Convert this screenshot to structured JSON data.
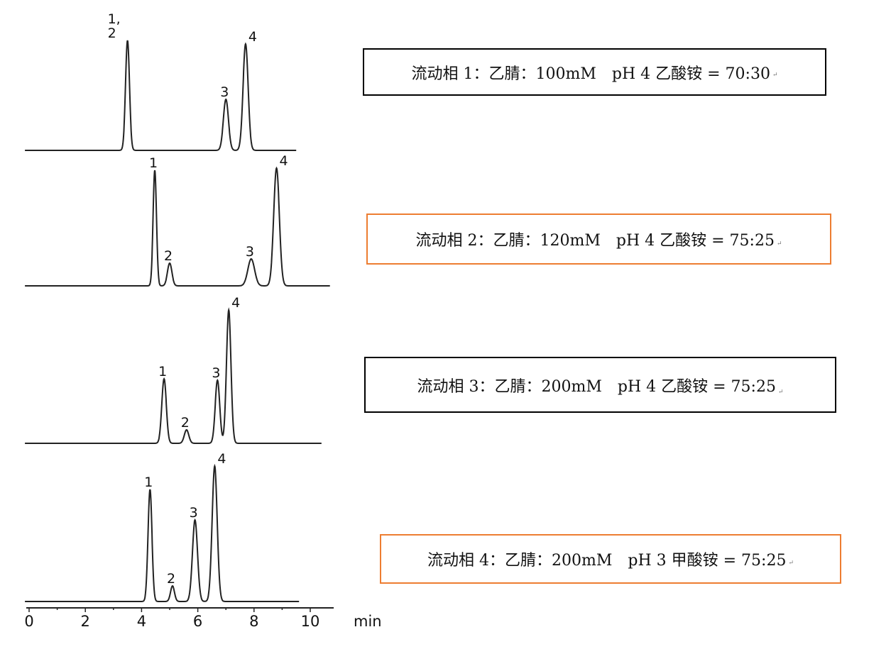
{
  "chart_data": {
    "type": "line",
    "xlabel": "min",
    "xlim": [
      0,
      10
    ],
    "x_ticks": [
      "0",
      "2",
      "4",
      "6",
      "8",
      "10"
    ],
    "grid": false,
    "traces": [
      {
        "label": "流动相 1：乙腈：100mM　pH 4 乙酸铵 = 70:30",
        "highlight": false,
        "x_end": 9.5,
        "peaks": [
          {
            "label": "1,\n2",
            "rt": 3.5,
            "height": 155,
            "width": 0.07
          },
          {
            "label": "3",
            "rt": 7.0,
            "height": 72,
            "width": 0.09
          },
          {
            "label": "4",
            "rt": 7.7,
            "height": 150,
            "width": 0.09
          }
        ]
      },
      {
        "label": "流动相 2：乙腈：120mM　pH 4 乙酸铵 = 75:25",
        "highlight": true,
        "x_end": 10.7,
        "peaks": [
          {
            "label": "1",
            "rt": 4.47,
            "height": 163,
            "width": 0.06
          },
          {
            "label": "2",
            "rt": 5.0,
            "height": 32,
            "width": 0.08
          },
          {
            "label": "3",
            "rt": 7.9,
            "height": 38,
            "width": 0.12
          },
          {
            "label": "4",
            "rt": 8.8,
            "height": 166,
            "width": 0.1
          }
        ]
      },
      {
        "label": "流动相 3：乙腈：200mM　pH 4 乙酸铵 = 75:25",
        "highlight": false,
        "x_end": 10.4,
        "peaks": [
          {
            "label": "1",
            "rt": 4.8,
            "height": 91,
            "width": 0.08
          },
          {
            "label": "2",
            "rt": 5.6,
            "height": 19,
            "width": 0.08
          },
          {
            "label": "3",
            "rt": 6.7,
            "height": 89,
            "width": 0.08
          },
          {
            "label": "4",
            "rt": 7.1,
            "height": 188,
            "width": 0.08
          }
        ]
      },
      {
        "label": "流动相 4：乙腈：200mM　pH 3 甲酸铵 = 75:25",
        "highlight": true,
        "x_end": 9.6,
        "peaks": [
          {
            "label": "1",
            "rt": 4.3,
            "height": 158,
            "width": 0.07
          },
          {
            "label": "2",
            "rt": 5.1,
            "height": 22,
            "width": 0.07
          },
          {
            "label": "3",
            "rt": 5.9,
            "height": 115,
            "width": 0.09
          },
          {
            "label": "4",
            "rt": 6.6,
            "height": 191,
            "width": 0.09
          }
        ]
      }
    ]
  },
  "colors": {
    "trace": "#222222",
    "box_default": "#000000",
    "box_highlight": "#ED7D31"
  },
  "return_mark": "↵"
}
